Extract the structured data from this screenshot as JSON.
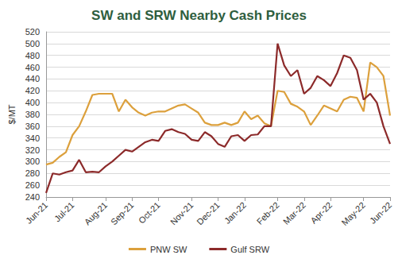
{
  "chart_data": {
    "type": "line",
    "title": "SW and SRW Nearby Cash Prices",
    "y_label": "$/MT",
    "categories": [
      "Jun-21",
      null,
      null,
      null,
      "Jul-21",
      null,
      null,
      null,
      null,
      "Aug-21",
      null,
      null,
      null,
      "Sep-21",
      null,
      null,
      null,
      "Oct-21",
      null,
      null,
      null,
      null,
      "Nov-21",
      null,
      null,
      null,
      "Dec-21",
      null,
      null,
      null,
      "Jan-22",
      null,
      null,
      null,
      null,
      "Feb-22",
      null,
      null,
      null,
      "Mar-22",
      null,
      null,
      null,
      "Apr-22",
      null,
      null,
      null,
      null,
      "May-22",
      null,
      null,
      null,
      "Jun-22"
    ],
    "series": [
      {
        "name": "PNW SW",
        "color": "#dca03c",
        "values": [
          295,
          298,
          308,
          316,
          345,
          360,
          385,
          413,
          415,
          415,
          415,
          385,
          405,
          392,
          383,
          378,
          383,
          385,
          385,
          390,
          395,
          397,
          390,
          383,
          366,
          362,
          362,
          366,
          362,
          366,
          385,
          372,
          378,
          365,
          360,
          420,
          418,
          398,
          393,
          385,
          362,
          378,
          395,
          390,
          385,
          405,
          410,
          408,
          385,
          468,
          460,
          445,
          378
        ]
      },
      {
        "name": "Gulf SRW",
        "color": "#8c2a2a",
        "values": [
          247,
          280,
          278,
          282,
          285,
          303,
          282,
          283,
          282,
          292,
          300,
          310,
          320,
          317,
          325,
          333,
          337,
          335,
          352,
          355,
          350,
          347,
          337,
          335,
          350,
          343,
          330,
          325,
          343,
          345,
          335,
          345,
          346,
          360,
          360,
          500,
          463,
          445,
          455,
          415,
          425,
          445,
          438,
          428,
          450,
          480,
          476,
          455,
          405,
          415,
          400,
          360,
          330
        ]
      }
    ],
    "ylim": [
      240,
      520
    ],
    "yticks": [
      240,
      260,
      280,
      300,
      320,
      340,
      360,
      380,
      400,
      420,
      440,
      460,
      480,
      500,
      520
    ],
    "grid": true,
    "legend": "bottom"
  }
}
